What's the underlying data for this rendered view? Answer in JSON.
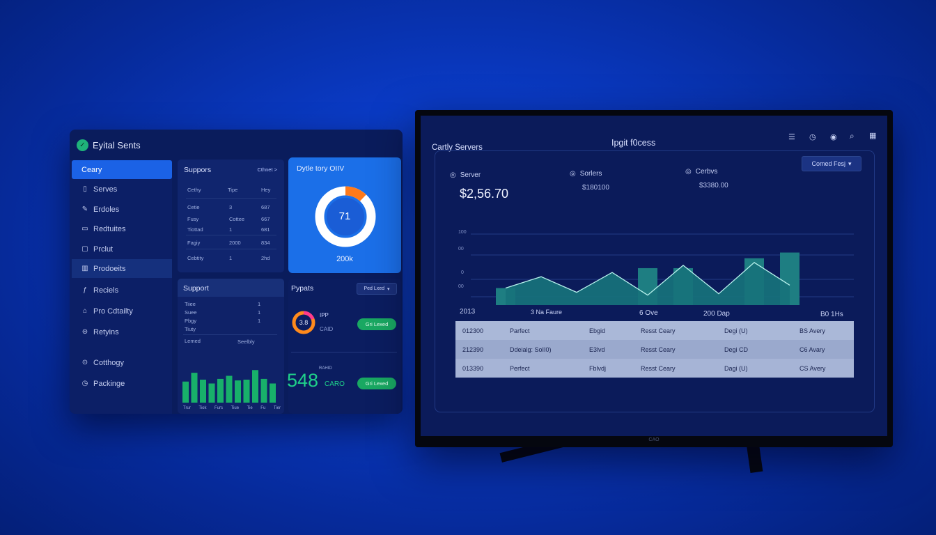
{
  "left_panel": {
    "brand": "Eyital Sents",
    "nav": [
      {
        "label": "Ceary",
        "icon": "home-icon"
      },
      {
        "label": "Serves",
        "icon": "document-icon"
      },
      {
        "label": "Erdoles",
        "icon": "bookmark-icon"
      },
      {
        "label": "Redtuites",
        "icon": "folder-icon"
      },
      {
        "label": "Prclut",
        "icon": "box-icon"
      },
      {
        "label": "Prodoeits",
        "icon": "chart-icon"
      },
      {
        "label": "Reciels",
        "icon": "flag-icon"
      },
      {
        "label": "Pro Cdtailty",
        "icon": "lock-icon"
      },
      {
        "label": "Retyins",
        "icon": "refresh-icon"
      },
      {
        "label": "Cotthogy",
        "icon": "gear-icon"
      },
      {
        "label": "Packinge",
        "icon": "clock-icon"
      }
    ],
    "suppors_card": {
      "title": "Suppors",
      "link": "Cthnet >",
      "headers": [
        "Cethy",
        "Tipe",
        "Hey"
      ],
      "rows": [
        [
          "Cetie",
          "3",
          "687"
        ],
        [
          "Fusy",
          "Cottee",
          "667"
        ],
        [
          "Tiottad",
          "1",
          "681"
        ],
        [
          "Fagiy",
          "2000",
          "834"
        ],
        [
          "Cebtity",
          "1",
          "2hd"
        ]
      ]
    },
    "donut_card": {
      "title": "Dytle tory OIIV",
      "value": "71",
      "footer": "200k",
      "ratio": 0.12
    },
    "support_card": {
      "title": "Support",
      "rows": [
        "Tiiee",
        "Suee",
        "Pbgy",
        "Tiuty"
      ],
      "footer_left": "Lemed",
      "footer_right": "Seelbly",
      "bars": [
        0.55,
        0.78,
        0.6,
        0.5,
        0.62,
        0.7,
        0.58,
        0.6,
        0.85,
        0.62,
        0.5
      ],
      "ticks": [
        "Trur",
        "Tiok",
        "Furs",
        "Tiue",
        "Tie",
        "Fu",
        "Tier"
      ]
    },
    "pypats_card": {
      "title": "Pypats",
      "dropdown": "Ped Lxed",
      "ring_value": "3.8",
      "label_top": "IPP",
      "label_bottom": "CAID",
      "btn1": "Gri Lexed",
      "big_value": "548",
      "big_sub": "CARO",
      "big_small": "RAHID",
      "btn2": "Gri Lexed"
    }
  },
  "monitor": {
    "left_title": "Cartly Servers",
    "center_title": "Ipgit f0cess",
    "icons": [
      "menu-icon",
      "clock-icon",
      "globe-icon",
      "search-icon",
      "grid-icon"
    ],
    "kpis": [
      {
        "label": "Server",
        "value": "$2,56.70",
        "icon": "user-icon"
      },
      {
        "label": "Sorlers",
        "value": "$180100",
        "icon": "server-icon"
      },
      {
        "label": "Cerbvs",
        "value": "$3380.00",
        "icon": "cart-icon"
      }
    ],
    "dropdown": "Comed Fesj",
    "chart_data": {
      "type": "area",
      "y_ticks": [
        "100",
        "00",
        "0",
        "00"
      ],
      "area_values": [
        24,
        40,
        18,
        46,
        14,
        56,
        16,
        60,
        28
      ],
      "bar_values": [
        24,
        0,
        0,
        0,
        52,
        52,
        0,
        66,
        74
      ],
      "ylim": [
        0,
        100
      ]
    },
    "table": {
      "headers": [
        "2013",
        "3 Na Faure",
        "6 Ove",
        "200 Dap",
        "B0 1Hs"
      ],
      "rows": [
        [
          "012300",
          "Parfect",
          "Ebgid",
          "Resst Ceary",
          "Degi (U)",
          "BS Avery"
        ],
        [
          "212390",
          "Ddeialg: SoII0)",
          "E3lvd",
          "Resst Ceary",
          "Degi CD",
          "C6 Avary"
        ],
        [
          "013390",
          "Perfect",
          "Fblvdj",
          "Resst Ceary",
          "Dagi (U)",
          "CS Avery"
        ]
      ]
    },
    "bezel": "CAO"
  }
}
